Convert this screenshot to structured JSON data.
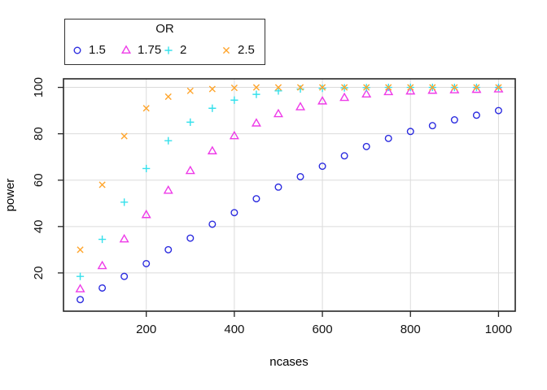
{
  "chart_data": {
    "type": "scatter",
    "title": "",
    "xlabel": "ncases",
    "ylabel": "power",
    "x": [
      50,
      100,
      150,
      200,
      250,
      300,
      350,
      400,
      450,
      500,
      550,
      600,
      650,
      700,
      750,
      800,
      850,
      900,
      950,
      1000
    ],
    "series": [
      {
        "name": "1.5",
        "marker": "circle",
        "color": "#2C2CDF",
        "values": [
          8.5,
          13.5,
          18.5,
          24,
          30,
          35,
          41,
          46,
          52,
          57,
          61.5,
          66,
          70.5,
          74.5,
          78,
          81,
          83.5,
          86,
          88,
          90
        ]
      },
      {
        "name": "1.75",
        "marker": "triangle",
        "color": "#EE3BE8",
        "values": [
          13,
          23,
          34.5,
          45,
          55.5,
          64,
          72.5,
          79,
          84.5,
          88.5,
          91.5,
          94,
          95.5,
          97,
          98,
          98.3,
          98.6,
          98.8,
          99,
          99.2
        ]
      },
      {
        "name": "2",
        "marker": "plus",
        "color": "#35E0EC",
        "values": [
          18.5,
          34.5,
          50.5,
          65,
          77,
          85,
          91,
          94.5,
          97,
          98.5,
          99.3,
          99.6,
          99.8,
          99.9,
          100,
          100,
          100,
          100,
          100,
          100
        ]
      },
      {
        "name": "2.5",
        "marker": "x",
        "color": "#FFA52C",
        "values": [
          30,
          58,
          79,
          91,
          96,
          98.5,
          99.3,
          99.8,
          100,
          100,
          100,
          100,
          100,
          100,
          100,
          100,
          100,
          100,
          100,
          100
        ]
      }
    ],
    "x_ticks": [
      200,
      400,
      600,
      800,
      1000
    ],
    "y_ticks": [
      20,
      40,
      60,
      80,
      100
    ],
    "xlim": [
      12,
      1038
    ],
    "ylim": [
      3.5,
      103.7
    ],
    "grid": true,
    "legend": {
      "title": "OR",
      "position": "top-left"
    }
  },
  "colors": {
    "background": "#FFFFFF",
    "grid": "#DBDBDB",
    "axis": "#262626",
    "text": "#111111"
  }
}
